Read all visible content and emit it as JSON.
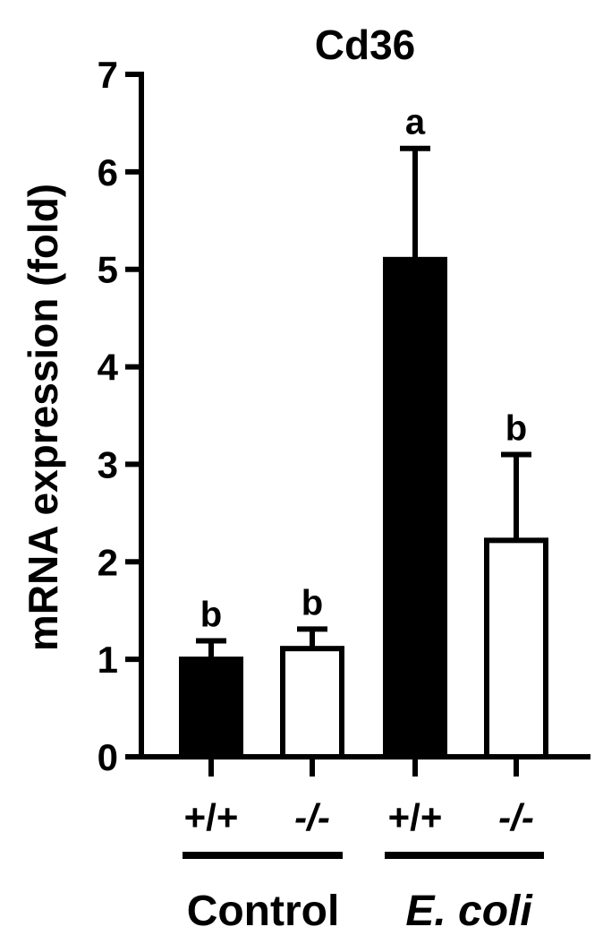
{
  "chart_data": {
    "type": "bar",
    "title": "Cd36",
    "ylabel": "mRNA expression (fold)",
    "xlabel": "",
    "ylim": [
      0,
      7
    ],
    "yticks": [
      "0",
      "1",
      "2",
      "3",
      "4",
      "5",
      "6",
      "7"
    ],
    "grid": false,
    "legend": "none",
    "categories": [
      "+/+",
      "-/-",
      "+/+",
      "-/-"
    ],
    "values": [
      1.0,
      1.11,
      5.1,
      2.22
    ],
    "errors": [
      0.19,
      0.2,
      1.14,
      0.88
    ],
    "significance": [
      "b",
      "b",
      "a",
      "b"
    ],
    "fills": [
      "#000000",
      "#ffffff",
      "#000000",
      "#ffffff"
    ],
    "groups": [
      {
        "label": "Control",
        "italic": false
      },
      {
        "label": "E. coli",
        "italic": true
      }
    ]
  }
}
